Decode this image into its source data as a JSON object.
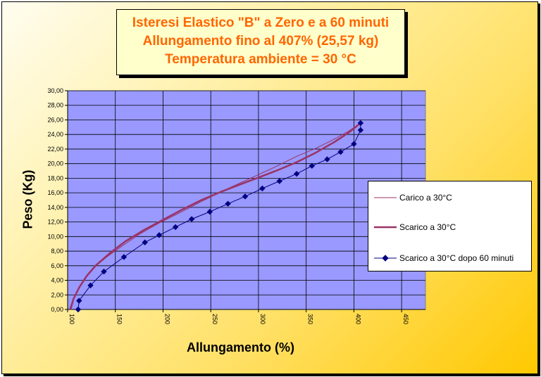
{
  "title": {
    "line1": "Isteresi Elastico \"B\" a Zero e a 60 minuti",
    "line2": "Allungamento fino al 407% (25,57 kg)",
    "line3": "Temperatura ambiente = 30 °C"
  },
  "colors": {
    "plot_bg": "#9999ff",
    "title_text": "#ff6600",
    "title_box": "#ffffcc",
    "carico": "#993366",
    "scarico": "#993366",
    "scarico60": "#000080"
  },
  "chart_data": {
    "type": "line",
    "title": "Isteresi Elastico \"B\" a Zero e a 60 minuti",
    "subtitle": "Allungamento fino al 407% (25,57 kg) — Temperatura ambiente = 30 °C",
    "xlabel": "Allungamento (%)",
    "ylabel": "Peso (Kg)",
    "xlim": [
      100,
      475
    ],
    "ylim": [
      0,
      30
    ],
    "x_ticks": [
      "100",
      "150",
      "200",
      "250",
      "300",
      "350",
      "400",
      "450"
    ],
    "y_ticks": [
      "0,00",
      "2,00",
      "4,00",
      "6,00",
      "8,00",
      "10,00",
      "12,00",
      "14,00",
      "16,00",
      "18,00",
      "20,00",
      "22,00",
      "24,00",
      "26,00",
      "28,00",
      "30,00"
    ],
    "grid": true,
    "legend_position": "right",
    "series": [
      {
        "name": "Carico a 30°C",
        "marker": "none",
        "x": [
          102,
          106,
          112,
          120,
          130,
          142,
          158,
          175,
          195,
          215,
          240,
          265,
          290,
          315,
          340,
          360,
          380,
          395,
          407
        ],
        "y": [
          0.0,
          1.5,
          3.0,
          4.5,
          6.0,
          7.3,
          8.8,
          10.3,
          11.8,
          13.1,
          14.8,
          16.4,
          17.9,
          19.4,
          21.0,
          22.1,
          23.4,
          24.5,
          25.57
        ]
      },
      {
        "name": "Scarico a 30°C",
        "marker": "none",
        "x": [
          407,
          395,
          380,
          360,
          340,
          320,
          300,
          280,
          260,
          240,
          220,
          200,
          180,
          160,
          145,
          130,
          120,
          112,
          106,
          103
        ],
        "y": [
          25.57,
          24.3,
          23.0,
          21.5,
          20.2,
          19.1,
          18.1,
          17.1,
          16.1,
          15.0,
          13.7,
          12.3,
          10.9,
          9.3,
          7.8,
          6.1,
          4.6,
          3.0,
          1.4,
          0.0
        ]
      },
      {
        "name": "Scarico a 30°C dopo 60 minuti",
        "marker": "diamond",
        "x": [
          407,
          407,
          400,
          386,
          372,
          356,
          340,
          322,
          304,
          286,
          268,
          249,
          230,
          213,
          196,
          181,
          159,
          138,
          124,
          112,
          111
        ],
        "y": [
          25.57,
          24.6,
          22.7,
          21.6,
          20.6,
          19.7,
          18.6,
          17.6,
          16.6,
          15.5,
          14.5,
          13.4,
          12.4,
          11.3,
          10.2,
          9.2,
          7.2,
          5.2,
          3.3,
          1.2,
          0.0
        ]
      }
    ]
  }
}
